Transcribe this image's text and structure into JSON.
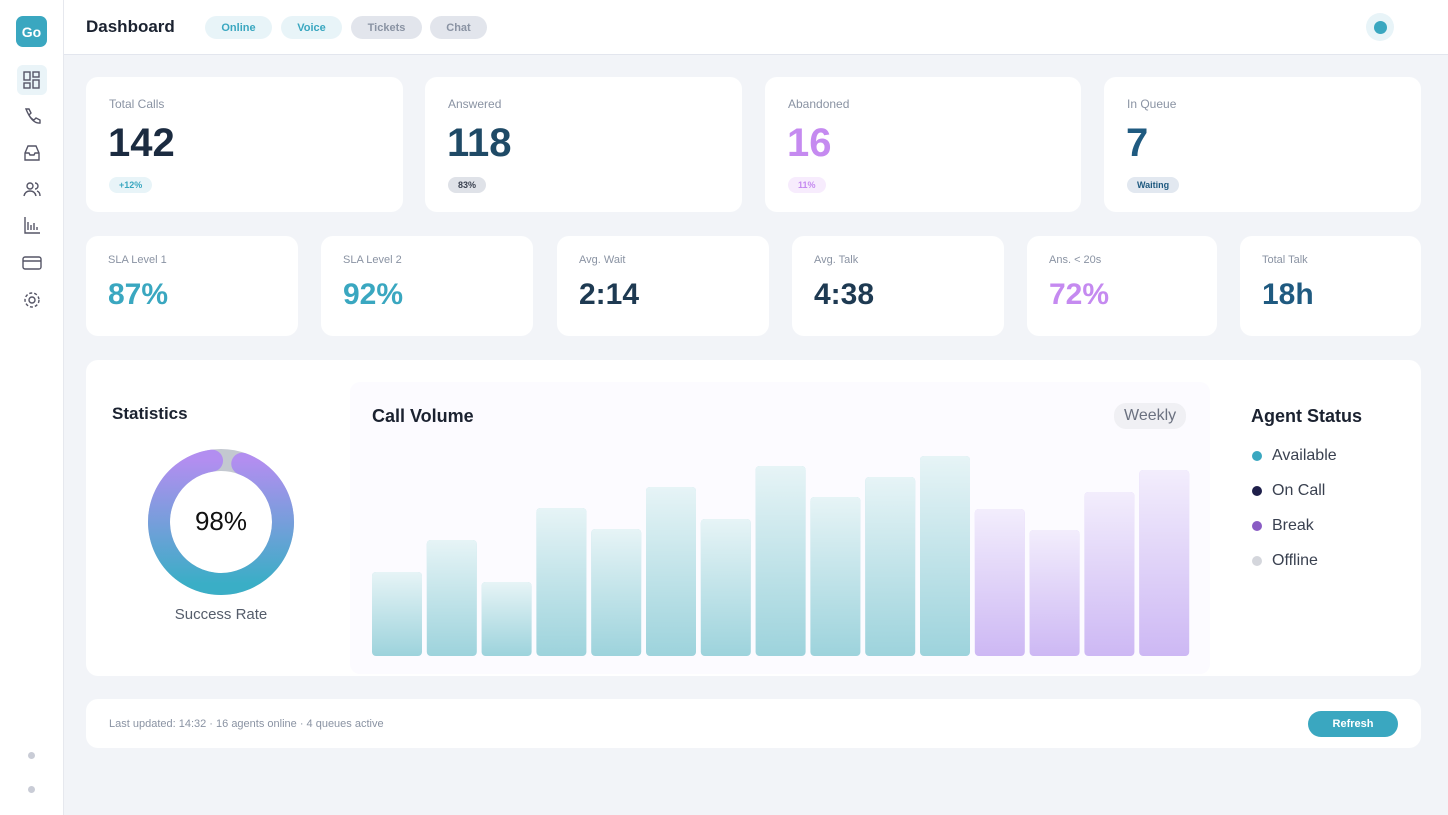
{
  "header": {
    "logo": "Go",
    "title": "Dashboard",
    "tabs": [
      "Online",
      "Voice",
      "Tickets",
      "Chat"
    ]
  },
  "kpis": [
    {
      "label": "Total Calls",
      "value": "142",
      "badge": "+12%",
      "color": "#1b2b40"
    },
    {
      "label": "Answered",
      "value": "118",
      "badge": "83%",
      "color": "#1f4a66"
    },
    {
      "label": "Abandoned",
      "value": "16",
      "badge": "11%",
      "color": "#c58af0"
    },
    {
      "label": "In Queue",
      "value": "7",
      "badge": "Waiting",
      "color": "#1f5a80"
    }
  ],
  "metrics": [
    {
      "label": "SLA Level 1",
      "value": "87%",
      "color": "#3aa7c0"
    },
    {
      "label": "SLA Level 2",
      "value": "92%",
      "color": "#3aa7c0"
    },
    {
      "label": "Avg. Wait",
      "value": "2:14",
      "color": "#1e3a52"
    },
    {
      "label": "Avg. Talk",
      "value": "4:38",
      "color": "#1e3a52"
    },
    {
      "label": "Ans. < 20s",
      "value": "72%",
      "color": "#c58af0"
    },
    {
      "label": "Total Talk",
      "value": "18h",
      "color": "#1f5a80"
    }
  ],
  "statistics": {
    "type": "donut",
    "title": "Statistics",
    "value": 98,
    "value_label": "98%",
    "caption": "Success Rate"
  },
  "call_volume": {
    "type": "bar",
    "title": "Call Volume",
    "filter": "Weekly",
    "values": [
      84,
      116,
      74,
      148,
      127,
      169,
      137,
      190,
      159,
      179,
      200,
      147,
      126,
      164,
      186
    ],
    "colors": [
      "#9dd3dc",
      "#9dd3dc",
      "#9dd3dc",
      "#9dd3dc",
      "#9dd3dc",
      "#9dd3dc",
      "#9dd3dc",
      "#9dd3dc",
      "#9dd3dc",
      "#9dd3dc",
      "#9dd3dc",
      "#cdb8f4",
      "#cdb8f4",
      "#cdb8f4",
      "#cdb8f4"
    ]
  },
  "agent_status": {
    "title": "Agent Status",
    "items": [
      {
        "name": "Available",
        "color": "#3aa7c0"
      },
      {
        "name": "On Call",
        "color": "#1e1f4a"
      },
      {
        "name": "Break",
        "color": "#8a5cc4"
      },
      {
        "name": "Offline",
        "color": "#d4d6dc"
      }
    ]
  },
  "footer": {
    "text": "Last updated: 14:32 · 16 agents online · 4 queues active",
    "button": "Refresh"
  }
}
